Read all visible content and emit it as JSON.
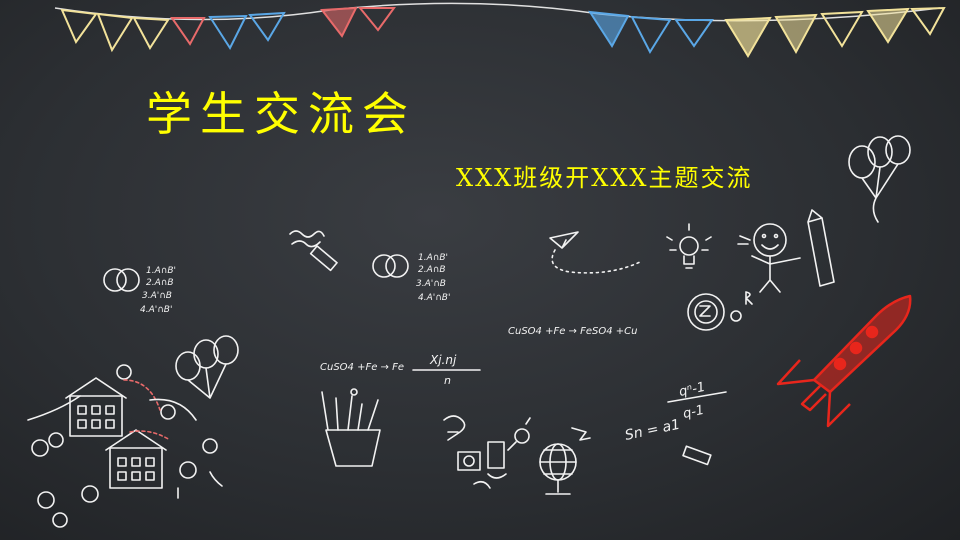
{
  "slide": {
    "title": "学生交流会",
    "subtitle": "XXX班级开XXX主题交流"
  },
  "doodles": {
    "venn_labels": [
      "1.A∩B'",
      "2.A∩B",
      "3.A'∩B",
      "4.A'∩B'"
    ],
    "equation_1": "CuSO4 +Fe → FeSO4 +Cu",
    "equation_2": "CuSO4 +Fe → Fe",
    "fraction_numerator": "Xj.nj",
    "fraction_denominator": "n",
    "series_formula_lhs": "Sn = a1",
    "series_formula_num": "qⁿ-1",
    "series_formula_den": "q-1"
  },
  "colors": {
    "title": "#ffff00",
    "flag_pink": "#e86a6a",
    "flag_blue": "#5aa7e6",
    "flag_yellow": "#f2e29a",
    "rocket_red": "#e8261c",
    "chalk": "#f2f2f2"
  }
}
